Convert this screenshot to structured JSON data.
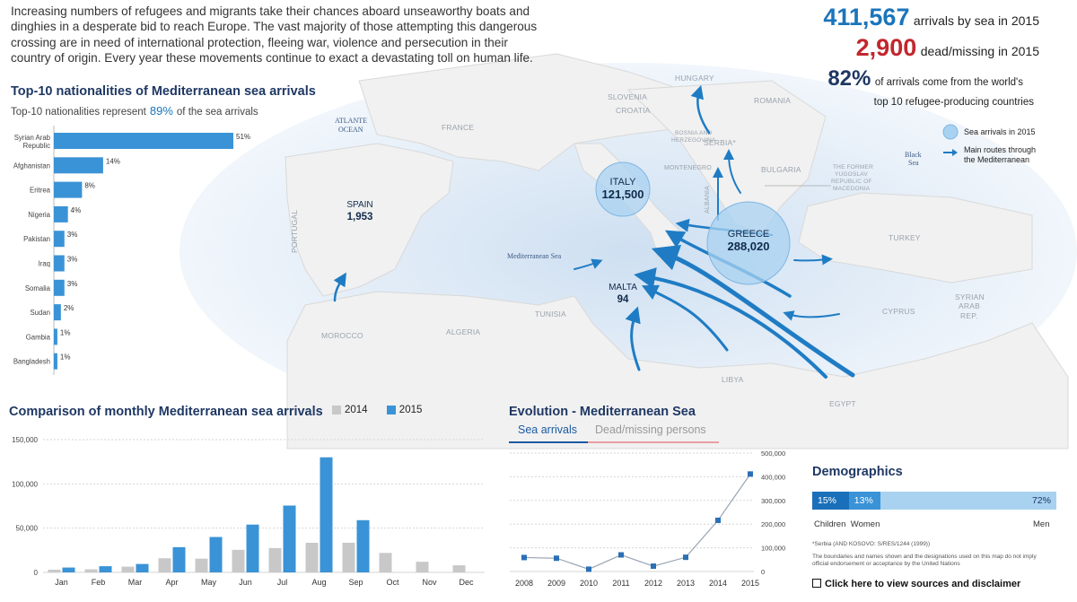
{
  "intro": "Increasing numbers of refugees and migrants take their chances aboard unseaworthy boats and dinghies in a desperate bid to reach Europe. The vast majority of those attempting this dangerous crossing are in need of international protection, fleeing war, violence and persecution in their country of origin. Every year these movements continue to exact a devastating toll on human life.",
  "stats": {
    "arrivals_num": "411,567",
    "arrivals_label": "arrivals by sea in 2015",
    "dead_num": "2,900",
    "dead_label": "dead/missing in 2015",
    "pct_num": "82%",
    "pct_label_1": "of arrivals come from the world's",
    "pct_label_2": "top 10 refugee-producing countries"
  },
  "top10": {
    "title": "Top-10 nationalities of Mediterranean sea arrivals",
    "subtitle": "Top-10 nationalities represent",
    "subtitle_pct": "89%",
    "subtitle_end": "of the sea arrivals"
  },
  "map": {
    "countries": [
      "HUNGARY",
      "ROMANIA",
      "SLOVENIA",
      "CROATIA",
      "BOSNIA AND",
      "HERZEGOVINA",
      "SERBIA*",
      "MONTENEGRO",
      "ALBANIA",
      "BULGARIA",
      "THE FORMER",
      "YUGOSLAV",
      "REPUBLIC OF",
      "MACEDONIA",
      "TURKEY",
      "FRANCE",
      "SPAIN",
      "PORTUGAL",
      "MOROCCO",
      "ALGERIA",
      "TUNISIA",
      "LIBYA",
      "EGYPT",
      "CYPRUS",
      "SYRIAN",
      "ARAB",
      "REP."
    ],
    "seas": [
      "ATLANTE",
      "OCEAN",
      "Mediterranean Sea",
      "Black",
      "Sea"
    ],
    "circles": [
      {
        "name": "ITALY",
        "value": "121,500"
      },
      {
        "name": "GREECE",
        "value": "288,020"
      },
      {
        "name": "SPAIN",
        "value": "1,953"
      },
      {
        "name": "MALTA",
        "value": "94"
      }
    ],
    "legend_circle": "Sea arrivals in 2015",
    "legend_route_1": "Main routes through",
    "legend_route_2": "the Mediterranean"
  },
  "monthly": {
    "title": "Comparison of monthly Mediterranean sea arrivals",
    "legend_2014": "2014",
    "legend_2015": "2015"
  },
  "evolution": {
    "title": "Evolution - Mediterranean Sea",
    "tab_active": "Sea arrivals",
    "tab_inactive": "Dead/missing persons"
  },
  "demographics": {
    "title": "Demographics",
    "segments": [
      {
        "pct": "15%",
        "label": "Children",
        "value": 15
      },
      {
        "pct": "13%",
        "label": "Women",
        "value": 13
      },
      {
        "pct": "72%",
        "label": "Men",
        "value": 72
      }
    ],
    "footnote_1": "*Serbia (AND KOSOVO: S/RES/1244 (1999))",
    "footnote_2": "The boundaries and names shown and the designations used on this map do not imply official endorsement or acceptance by the United Nations",
    "link": "Click here to view sources and disclaimer"
  },
  "colors": {
    "primary": "#3a93d6",
    "light": "#a8d2f0",
    "gray2014": "#c8c8c8",
    "navy": "#1f3864",
    "red": "#c1272d",
    "line": "#2b6fb5"
  },
  "chart_data": [
    {
      "type": "bar",
      "orientation": "horizontal",
      "title": "Top-10 nationalities of Mediterranean sea arrivals",
      "categories": [
        "Syrian Arab Republic",
        "Afghanistan",
        "Eritrea",
        "Nigeria",
        "Pakistan",
        "Iraq",
        "Somalia",
        "Sudan",
        "Gambia",
        "Bangladesh"
      ],
      "values": [
        51,
        14,
        8,
        4,
        3,
        3,
        3,
        2,
        1,
        1
      ],
      "value_labels": [
        "51%",
        "14%",
        "8%",
        "4%",
        "3%",
        "3%",
        "3%",
        "2%",
        "1%",
        "1%"
      ],
      "unit": "%"
    },
    {
      "type": "bar",
      "title": "Comparison of monthly Mediterranean sea arrivals",
      "categories": [
        "Jan",
        "Feb",
        "Mar",
        "Apr",
        "May",
        "Jun",
        "Jul",
        "Aug",
        "Sep",
        "Oct",
        "Nov",
        "Dec"
      ],
      "series": [
        {
          "name": "2014",
          "values": [
            3000,
            3500,
            6500,
            16000,
            15500,
            25500,
            27500,
            33500,
            33500,
            22000,
            12000,
            8000
          ]
        },
        {
          "name": "2015",
          "values": [
            5500,
            7000,
            9500,
            28500,
            40000,
            54000,
            75500,
            130000,
            59000,
            null,
            null,
            null
          ]
        }
      ],
      "ylim": [
        0,
        150000
      ],
      "yticks": [
        0,
        50000,
        100000,
        150000
      ],
      "ytick_labels": [
        "0",
        "50,000",
        "100,000",
        "150,000"
      ],
      "grid": true,
      "legend": "top"
    },
    {
      "type": "line",
      "title": "Evolution - Mediterranean Sea",
      "x": [
        "2008",
        "2009",
        "2010",
        "2011",
        "2012",
        "2013",
        "2014",
        "2015"
      ],
      "series": [
        {
          "name": "Sea arrivals",
          "values": [
            59000,
            56000,
            9700,
            70000,
            22500,
            60000,
            216000,
            411567
          ]
        }
      ],
      "ylim": [
        0,
        500000
      ],
      "yticks": [
        0,
        100000,
        200000,
        300000,
        400000,
        500000
      ],
      "ytick_labels": [
        "0",
        "100,000",
        "200,000",
        "300,000",
        "400,000",
        "500,000"
      ],
      "grid": true
    }
  ]
}
